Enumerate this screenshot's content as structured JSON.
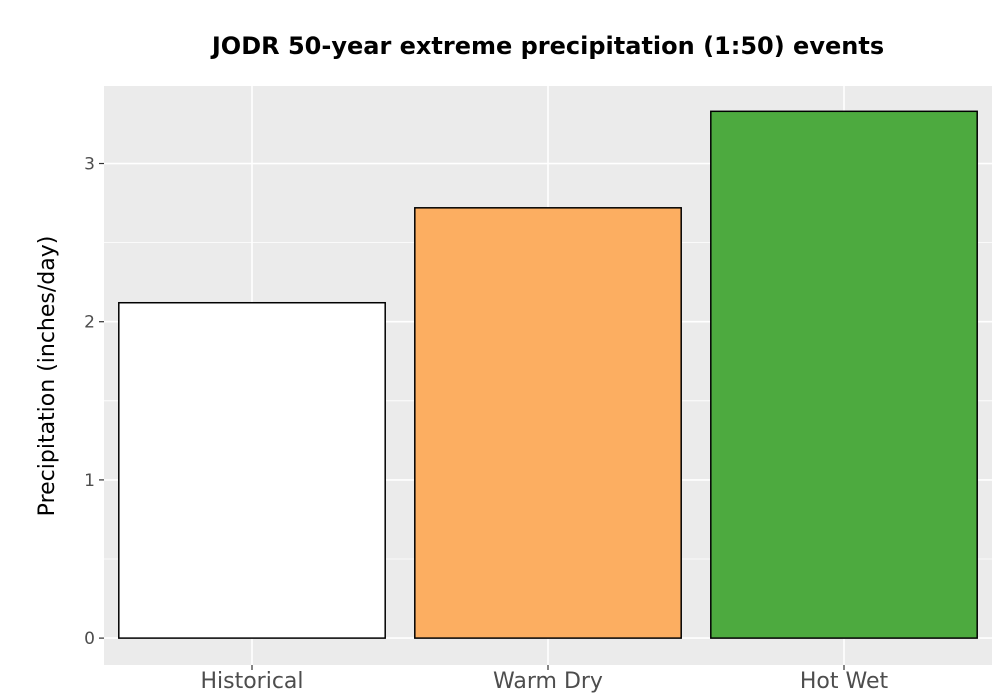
{
  "chart_data": {
    "type": "bar",
    "title": "JODR 50-year extreme precipitation (1:50) events",
    "xlabel": "",
    "ylabel": "Precipitation (inches/day)",
    "categories": [
      "Historical",
      "Warm Dry",
      "Hot Wet"
    ],
    "values": [
      2.12,
      2.72,
      3.33
    ],
    "bar_colors": [
      "#ffffff",
      "#fcae61",
      "#4daa3f"
    ],
    "bar_outline": "#000000",
    "ylim": [
      -0.17,
      3.49
    ],
    "yticks": [
      0,
      1,
      2,
      3
    ],
    "grid": true,
    "legend": "none",
    "panel_background": "#ebebeb",
    "grid_color": "#ffffff"
  }
}
